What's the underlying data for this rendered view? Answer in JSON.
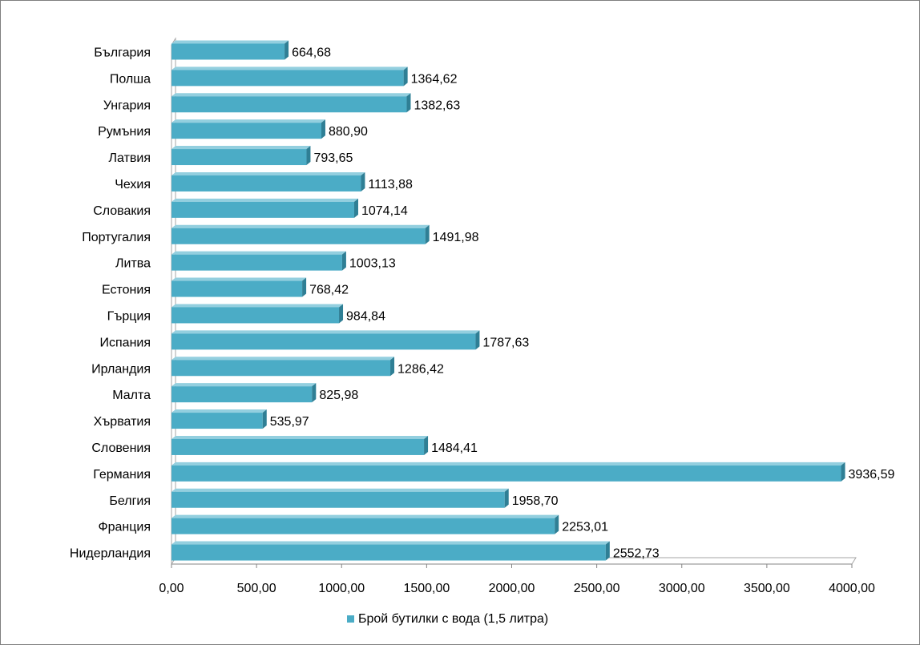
{
  "chart_data": {
    "type": "bar",
    "orientation": "horizontal",
    "style": "3d",
    "categories": [
      "България",
      "Полша",
      "Унгария",
      "Румъния",
      "Латвия",
      "Чехия",
      "Словакия",
      "Португалия",
      "Литва",
      "Естония",
      "Гърция",
      "Испания",
      "Ирландия",
      "Малта",
      "Хърватия",
      "Словения",
      "Германия",
      "Белгия",
      "Франция",
      "Нидерландия"
    ],
    "series": [
      {
        "name": "Брой бутилки с вода (1,5 литра)",
        "color": "#4bacc6",
        "values": [
          664.68,
          1364.62,
          1382.63,
          880.9,
          793.65,
          1113.88,
          1074.14,
          1491.98,
          1003.13,
          768.42,
          984.84,
          1787.63,
          1286.42,
          825.98,
          535.97,
          1484.41,
          3936.59,
          1958.7,
          2253.01,
          2552.73
        ],
        "value_labels": [
          "664,68",
          "1364,62",
          "1382,63",
          "880,90",
          "793,65",
          "1113,88",
          "1074,14",
          "1491,98",
          "1003,13",
          "768,42",
          "984,84",
          "1787,63",
          "1286,42",
          "825,98",
          "535,97",
          "1484,41",
          "3936,59",
          "1958,70",
          "2253,01",
          "2552,73"
        ]
      }
    ],
    "xlim": [
      0,
      4000
    ],
    "xticks": [
      0,
      500,
      1000,
      1500,
      2000,
      2500,
      3000,
      3500,
      4000
    ],
    "xtick_labels": [
      "0,00",
      "500,00",
      "1000,00",
      "1500,00",
      "2000,00",
      "2500,00",
      "3000,00",
      "3500,00",
      "4000,00"
    ],
    "gridlines": false,
    "legend_position": "bottom",
    "title": "",
    "xlabel": "",
    "ylabel": ""
  }
}
